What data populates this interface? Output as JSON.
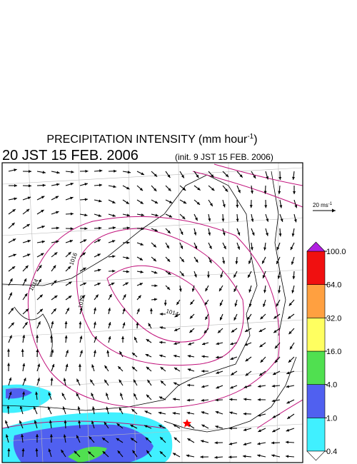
{
  "title": {
    "text": "PRECIPITATION INTENSITY (mm hour",
    "superscript": "-1",
    "suffix": ")"
  },
  "valid_time": "20 JST 15 FEB. 2006",
  "init_time": "(init. 9 JST 15 FEB. 2006)",
  "vector_scale": {
    "text": "20 ms",
    "superscript": "-1"
  },
  "contour_labels": [
    "1016",
    "1014",
    "1012",
    "1014"
  ],
  "colorbar": {
    "ticks": [
      {
        "value": 0.4,
        "label": "0.4"
      },
      {
        "value": 1,
        "label": "1.0"
      },
      {
        "value": 4,
        "label": "4.0"
      },
      {
        "value": 16,
        "label": "16.0"
      },
      {
        "value": 32,
        "label": "32.0"
      },
      {
        "value": 64,
        "label": "64.0"
      },
      {
        "value": 100,
        "label": "100.0"
      }
    ],
    "colors": [
      "#40f0ff",
      "#5060f0",
      "#50e050",
      "#ffff60",
      "#ffa040",
      "#f01010"
    ],
    "over_color": "#b020e0",
    "under_color": "#ffffff"
  }
}
